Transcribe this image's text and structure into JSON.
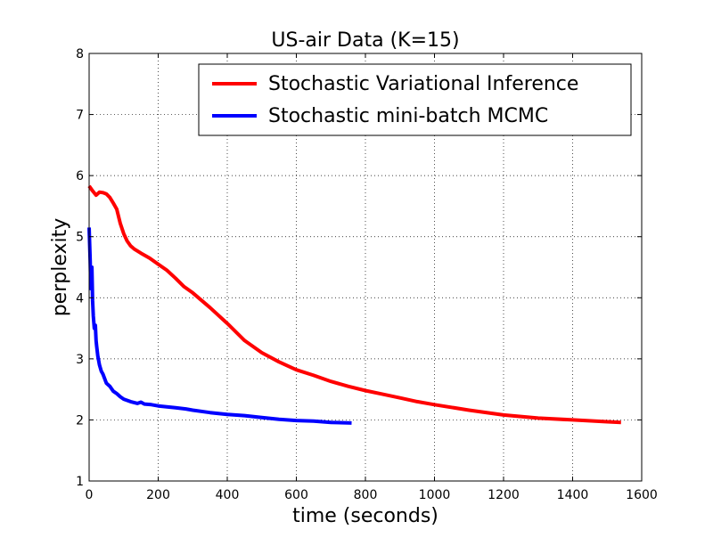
{
  "chart_data": {
    "type": "line",
    "title": "US-air Data (K=15)",
    "xlabel": "time (seconds)",
    "ylabel": "perplexity",
    "xlim": [
      0,
      1600
    ],
    "ylim": [
      1,
      8
    ],
    "xticks": [
      0,
      200,
      400,
      600,
      800,
      1000,
      1200,
      1400,
      1600
    ],
    "yticks": [
      1,
      2,
      3,
      4,
      5,
      6,
      7,
      8
    ],
    "grid": true,
    "legend_position": "top-right",
    "series": [
      {
        "name": "Stochastic Variational Inference",
        "color": "#ff0000",
        "x": [
          0,
          10,
          20,
          30,
          40,
          50,
          60,
          70,
          80,
          90,
          100,
          110,
          120,
          130,
          150,
          175,
          200,
          225,
          250,
          275,
          300,
          350,
          400,
          450,
          500,
          550,
          600,
          650,
          700,
          750,
          800,
          850,
          900,
          950,
          1000,
          1100,
          1200,
          1300,
          1400,
          1500,
          1540
        ],
        "y": [
          5.83,
          5.75,
          5.68,
          5.73,
          5.72,
          5.7,
          5.64,
          5.55,
          5.45,
          5.22,
          5.05,
          4.93,
          4.85,
          4.8,
          4.73,
          4.65,
          4.55,
          4.45,
          4.32,
          4.18,
          4.08,
          3.84,
          3.58,
          3.3,
          3.1,
          2.95,
          2.82,
          2.73,
          2.63,
          2.55,
          2.48,
          2.42,
          2.36,
          2.3,
          2.25,
          2.16,
          2.08,
          2.03,
          2.0,
          1.97,
          1.96
        ]
      },
      {
        "name": "Stochastic mini-batch MCMC",
        "color": "#0000ff",
        "x": [
          0,
          3,
          5,
          8,
          10,
          12,
          15,
          18,
          20,
          22,
          25,
          30,
          35,
          40,
          50,
          60,
          70,
          80,
          90,
          100,
          120,
          140,
          150,
          160,
          180,
          200,
          250,
          280,
          300,
          350,
          400,
          450,
          500,
          550,
          600,
          650,
          700,
          760
        ],
        "y": [
          5.15,
          4.6,
          4.15,
          4.5,
          3.95,
          3.7,
          3.5,
          3.55,
          3.3,
          3.2,
          3.05,
          2.9,
          2.8,
          2.75,
          2.6,
          2.55,
          2.47,
          2.43,
          2.38,
          2.34,
          2.3,
          2.27,
          2.29,
          2.26,
          2.25,
          2.23,
          2.2,
          2.18,
          2.16,
          2.12,
          2.09,
          2.07,
          2.04,
          2.01,
          1.99,
          1.98,
          1.96,
          1.95
        ]
      }
    ]
  }
}
